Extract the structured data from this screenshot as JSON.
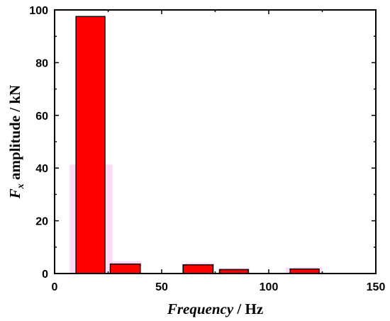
{
  "chart_data": {
    "type": "bar",
    "title": "",
    "xlabel_italic": "Frequency",
    "xlabel_rest": " / Hz",
    "ylabel_symbol": "F",
    "ylabel_subscript": "x",
    "ylabel_rest": " amplitude / kN",
    "xlim": [
      0,
      150
    ],
    "ylim": [
      0,
      100
    ],
    "xticks": [
      0,
      50,
      100,
      150
    ],
    "yticks": [
      0,
      20,
      40,
      60,
      80,
      100
    ],
    "bar_color": "#ff0000",
    "bar_edge": "#000000",
    "shadow_color": "#ffcdf3",
    "bars": [
      {
        "x_start": 10,
        "x_end": 23.5,
        "value": 97.5
      },
      {
        "x_start": 26,
        "x_end": 40,
        "value": 3.6
      },
      {
        "x_start": 60,
        "x_end": 74,
        "value": 3.3
      },
      {
        "x_start": 77,
        "x_end": 90.5,
        "value": 1.5
      },
      {
        "x_start": 110,
        "x_end": 123.5,
        "value": 1.7
      }
    ],
    "shadows": [
      {
        "x_start": 7,
        "x_end": 27,
        "value": 41.3
      },
      {
        "x_start": 26,
        "x_end": 40.5,
        "value": 4.7
      },
      {
        "x_start": 61,
        "x_end": 74.5,
        "value": 4.1
      },
      {
        "x_start": 77,
        "x_end": 91,
        "value": 2.0
      },
      {
        "x_start": 108,
        "x_end": 125,
        "value": 2.3
      }
    ]
  }
}
